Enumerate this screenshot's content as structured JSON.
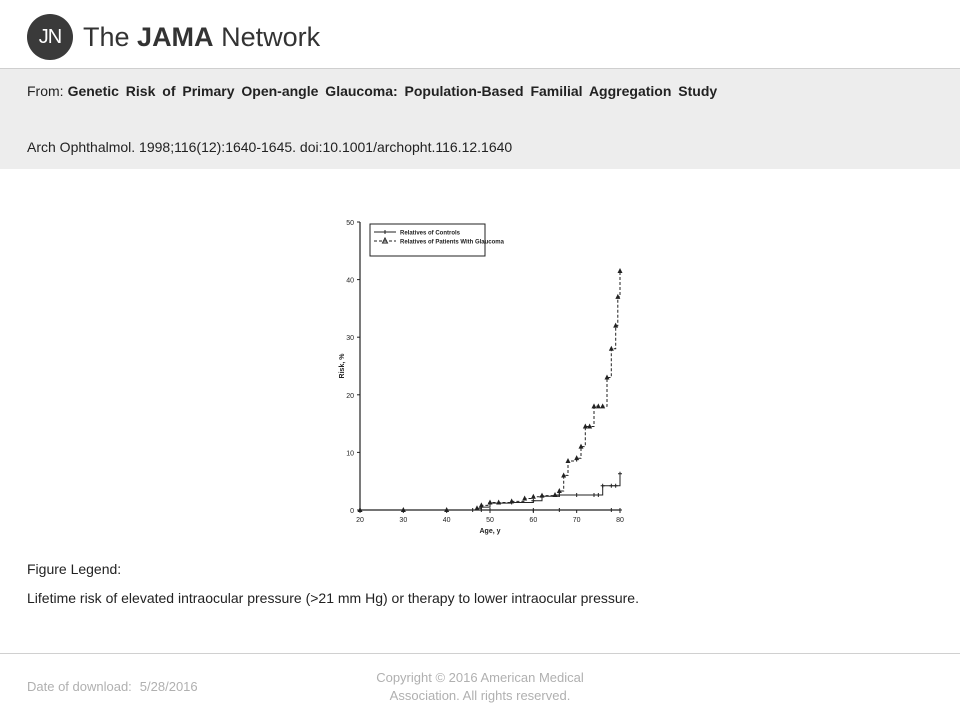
{
  "brand": {
    "logo_mark": "JN",
    "name_prefix": "The",
    "name_bold": "JAMA",
    "name_suffix": "Network"
  },
  "header": {
    "from_label": "From:",
    "article_title": "Genetic Risk of Primary Open-angle Glaucoma: Population-Based Familial Aggregation Study",
    "citation": "Arch Ophthalmol. 1998;116(12):1640-1645. doi:10.1001/archopht.116.12.1640"
  },
  "legend": {
    "heading": "Figure Legend:",
    "text": "Lifetime risk of elevated intraocular pressure (>21 mm Hg) or therapy to lower intraocular pressure."
  },
  "footer": {
    "download_label": "Date of download:",
    "download_date": "5/28/2016",
    "copyright_line1": "Copyright © 2016 American Medical",
    "copyright_line2": "Association. All rights reserved."
  },
  "chart_data": {
    "type": "line",
    "xlabel": "Age, y",
    "ylabel": "Risk, %",
    "xlim": [
      20,
      80
    ],
    "ylim": [
      0,
      50
    ],
    "xticks": [
      20,
      30,
      40,
      50,
      60,
      70,
      80
    ],
    "yticks": [
      0,
      10,
      20,
      30,
      40,
      50
    ],
    "legend_position": "top-right",
    "series": [
      {
        "name": "Relatives of Controls",
        "style": "solid-plus",
        "x": [
          20,
          48,
          50,
          60,
          66,
          78,
          80
        ],
        "y": [
          0,
          0,
          0,
          0,
          0,
          0,
          0
        ]
      },
      {
        "name": "Relatives of Patients With Glaucoma",
        "style": "dashed-triangle",
        "x": [
          20,
          30,
          40,
          47,
          48,
          50,
          52,
          55,
          58,
          60,
          62,
          65,
          66,
          67,
          68,
          70,
          71,
          72,
          73,
          74,
          75,
          76,
          77,
          78,
          79,
          79.5,
          80
        ],
        "y": [
          0,
          0,
          0,
          0.3,
          0.8,
          1.3,
          1.3,
          1.5,
          2,
          2.3,
          2.5,
          2.6,
          3.3,
          6,
          8.5,
          9,
          11,
          14.5,
          14.5,
          18,
          18,
          18,
          23,
          28,
          32,
          37,
          41.5
        ]
      },
      {
        "name": "",
        "style": "step-mid",
        "x": [
          20,
          46,
          48,
          50,
          55,
          60,
          62,
          66,
          70,
          74,
          75,
          76,
          78,
          79,
          80
        ],
        "y": [
          0,
          0,
          0.5,
          1.2,
          1.3,
          1.6,
          2.4,
          2.6,
          2.6,
          2.6,
          2.6,
          4.2,
          4.2,
          4.2,
          6.3
        ]
      }
    ]
  }
}
